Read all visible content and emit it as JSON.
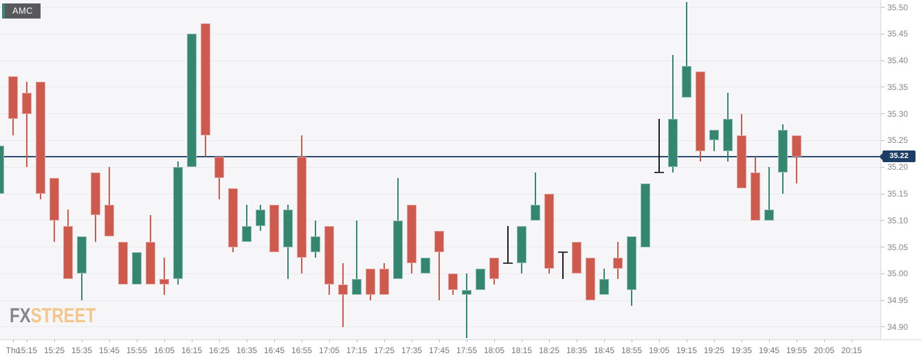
{
  "symbol_chip": {
    "label": "AMC",
    "accent_color": "#2e8c77",
    "bg": "#58595a"
  },
  "watermark": {
    "part1": "FX",
    "part2": "STREET",
    "color1": "#85858d",
    "color2": "#f3c78b"
  },
  "current_price": {
    "value": "35.22",
    "line_color": "#2a4a70",
    "tag_bg": "#1e3d66"
  },
  "chart_data": {
    "type": "candlestick",
    "symbol": "AMC",
    "interval_minutes": 5,
    "day_label": "Thu",
    "x_axis_labels": [
      "15:15",
      "15:25",
      "15:35",
      "15:45",
      "15:55",
      "16:05",
      "16:15",
      "16:25",
      "16:35",
      "16:45",
      "16:55",
      "17:05",
      "17:15",
      "17:25",
      "17:35",
      "17:45",
      "17:55",
      "18:05",
      "18:15",
      "18:25",
      "18:35",
      "18:45",
      "18:55",
      "19:05",
      "19:15",
      "19:25",
      "19:35",
      "19:45",
      "19:55",
      "20:05",
      "20:15"
    ],
    "y_axis_ticks": [
      34.9,
      34.95,
      35.0,
      35.05,
      35.1,
      35.15,
      35.2,
      35.25,
      35.3,
      35.35,
      35.4,
      35.45,
      35.5
    ],
    "grid": "horizontal-only",
    "legend_position": "none",
    "colors": {
      "up": "#348670",
      "down": "#cd5a4d",
      "bar": "#1b1b1b",
      "bar_tick": "#3a3a3a"
    },
    "current_price": 35.22,
    "candles": [
      {
        "t": "15:05",
        "o": 35.15,
        "h": 35.24,
        "l": 35.15,
        "c": 35.24
      },
      {
        "t": "15:10",
        "o": 35.37,
        "h": 35.37,
        "l": 35.26,
        "c": 35.29
      },
      {
        "t": "15:15",
        "o": 35.34,
        "h": 35.36,
        "l": 35.2,
        "c": 35.3
      },
      {
        "t": "15:20",
        "o": 35.36,
        "h": 35.36,
        "l": 35.14,
        "c": 35.15
      },
      {
        "t": "15:25",
        "o": 35.18,
        "h": 35.18,
        "l": 35.06,
        "c": 35.1
      },
      {
        "t": "15:30",
        "o": 35.09,
        "h": 35.12,
        "l": 34.99,
        "c": 34.99
      },
      {
        "t": "15:35",
        "o": 35.0,
        "h": 35.07,
        "l": 34.95,
        "c": 35.07
      },
      {
        "t": "15:40",
        "o": 35.19,
        "h": 35.19,
        "l": 35.06,
        "c": 35.11
      },
      {
        "t": "15:45",
        "o": 35.13,
        "h": 35.2,
        "l": 35.07,
        "c": 35.07
      },
      {
        "t": "15:50",
        "o": 35.06,
        "h": 35.06,
        "l": 34.98,
        "c": 34.98
      },
      {
        "t": "15:55",
        "o": 34.98,
        "h": 35.04,
        "l": 34.98,
        "c": 35.04
      },
      {
        "t": "16:00",
        "o": 35.06,
        "h": 35.11,
        "l": 34.98,
        "c": 34.98
      },
      {
        "t": "16:05",
        "o": 34.99,
        "h": 35.03,
        "l": 34.96,
        "c": 34.98
      },
      {
        "t": "16:10",
        "o": 34.99,
        "h": 35.21,
        "l": 34.98,
        "c": 35.2
      },
      {
        "t": "16:15",
        "o": 35.2,
        "h": 35.45,
        "l": 35.2,
        "c": 35.45
      },
      {
        "t": "16:20",
        "o": 35.47,
        "h": 35.47,
        "l": 35.22,
        "c": 35.26
      },
      {
        "t": "16:25",
        "o": 35.22,
        "h": 35.22,
        "l": 35.14,
        "c": 35.18
      },
      {
        "t": "16:30",
        "o": 35.16,
        "h": 35.16,
        "l": 35.04,
        "c": 35.05
      },
      {
        "t": "16:35",
        "o": 35.06,
        "h": 35.13,
        "l": 35.06,
        "c": 35.09
      },
      {
        "t": "16:40",
        "o": 35.09,
        "h": 35.13,
        "l": 35.08,
        "c": 35.12
      },
      {
        "t": "16:45",
        "o": 35.13,
        "h": 35.13,
        "l": 35.04,
        "c": 35.04
      },
      {
        "t": "16:50",
        "o": 35.05,
        "h": 35.13,
        "l": 34.99,
        "c": 35.12
      },
      {
        "t": "16:55",
        "o": 35.22,
        "h": 35.26,
        "l": 35.0,
        "c": 35.03
      },
      {
        "t": "17:00",
        "o": 35.04,
        "h": 35.1,
        "l": 35.03,
        "c": 35.07
      },
      {
        "t": "17:05",
        "o": 35.09,
        "h": 35.09,
        "l": 34.96,
        "c": 34.98
      },
      {
        "t": "17:10",
        "o": 34.98,
        "h": 35.02,
        "l": 34.9,
        "c": 34.96
      },
      {
        "t": "17:15",
        "o": 34.96,
        "h": 35.1,
        "l": 34.96,
        "c": 34.99
      },
      {
        "t": "17:20",
        "o": 35.01,
        "h": 35.01,
        "l": 34.95,
        "c": 34.96
      },
      {
        "t": "17:25",
        "o": 35.01,
        "h": 35.02,
        "l": 34.96,
        "c": 34.96
      },
      {
        "t": "17:30",
        "o": 34.99,
        "h": 35.18,
        "l": 34.99,
        "c": 35.1
      },
      {
        "t": "17:35",
        "o": 35.13,
        "h": 35.13,
        "l": 35.0,
        "c": 35.02
      },
      {
        "t": "17:40",
        "o": 35.0,
        "h": 35.03,
        "l": 35.0,
        "c": 35.03
      },
      {
        "t": "17:45",
        "o": 35.08,
        "h": 35.08,
        "l": 34.95,
        "c": 35.04
      },
      {
        "t": "17:50",
        "o": 35.0,
        "h": 35.0,
        "l": 34.96,
        "c": 34.97
      },
      {
        "t": "17:55",
        "o": 34.96,
        "h": 35.0,
        "l": 34.88,
        "c": 34.97
      },
      {
        "t": "18:00",
        "o": 34.97,
        "h": 35.01,
        "l": 34.97,
        "c": 35.01
      },
      {
        "t": "18:05",
        "o": 35.03,
        "h": 35.03,
        "l": 34.98,
        "c": 34.99
      },
      {
        "t": "18:10",
        "type": "bar",
        "h": 35.09,
        "l": 35.02,
        "tick": "bottom"
      },
      {
        "t": "18:15",
        "o": 35.02,
        "h": 35.09,
        "l": 35.0,
        "c": 35.09
      },
      {
        "t": "18:20",
        "o": 35.1,
        "h": 35.19,
        "l": 35.1,
        "c": 35.13
      },
      {
        "t": "18:25",
        "o": 35.15,
        "h": 35.15,
        "l": 35.0,
        "c": 35.01
      },
      {
        "t": "18:30",
        "type": "bar",
        "h": 35.04,
        "l": 34.99,
        "tick": "top"
      },
      {
        "t": "18:35",
        "o": 35.06,
        "h": 35.06,
        "l": 35.0,
        "c": 35.0
      },
      {
        "t": "18:40",
        "o": 35.03,
        "h": 35.03,
        "l": 34.95,
        "c": 34.95
      },
      {
        "t": "18:45",
        "o": 34.96,
        "h": 35.01,
        "l": 34.96,
        "c": 34.99
      },
      {
        "t": "18:50",
        "o": 35.03,
        "h": 35.06,
        "l": 34.99,
        "c": 35.01
      },
      {
        "t": "18:55",
        "o": 34.97,
        "h": 35.07,
        "l": 34.94,
        "c": 35.07
      },
      {
        "t": "19:00",
        "o": 35.05,
        "h": 35.17,
        "l": 35.05,
        "c": 35.17
      },
      {
        "t": "19:05",
        "type": "bar",
        "h": 35.29,
        "l": 35.19,
        "tick": "bottom"
      },
      {
        "t": "19:10",
        "o": 35.2,
        "h": 35.41,
        "l": 35.19,
        "c": 35.29
      },
      {
        "t": "19:15",
        "o": 35.33,
        "h": 35.51,
        "l": 35.33,
        "c": 35.39
      },
      {
        "t": "19:20",
        "o": 35.38,
        "h": 35.38,
        "l": 35.21,
        "c": 35.23
      },
      {
        "t": "19:25",
        "o": 35.25,
        "h": 35.27,
        "l": 35.23,
        "c": 35.27
      },
      {
        "t": "19:30",
        "o": 35.23,
        "h": 35.34,
        "l": 35.21,
        "c": 35.29
      },
      {
        "t": "19:35",
        "o": 35.26,
        "h": 35.3,
        "l": 35.16,
        "c": 35.16
      },
      {
        "t": "19:40",
        "o": 35.19,
        "h": 35.22,
        "l": 35.1,
        "c": 35.1
      },
      {
        "t": "19:45",
        "o": 35.1,
        "h": 35.2,
        "l": 35.1,
        "c": 35.12
      },
      {
        "t": "19:50",
        "o": 35.19,
        "h": 35.28,
        "l": 35.15,
        "c": 35.27
      },
      {
        "t": "19:55",
        "o": 35.26,
        "h": 35.26,
        "l": 35.17,
        "c": 35.22
      }
    ]
  }
}
